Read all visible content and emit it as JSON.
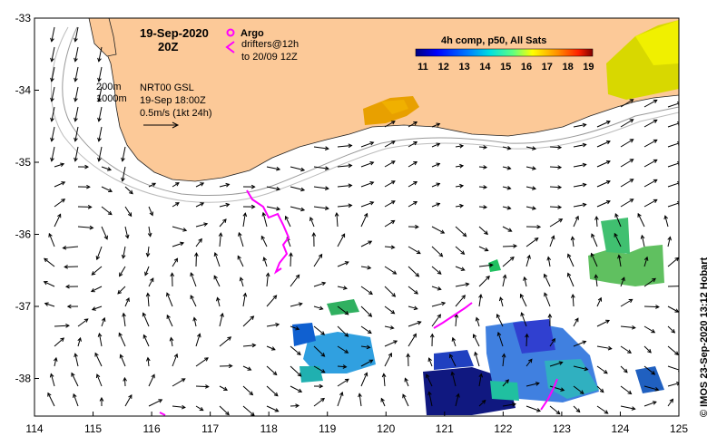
{
  "map": {
    "date_line1": "19-Sep-2020",
    "date_line2": "20Z",
    "argo_label": "Argo",
    "drifters_line1": "drifters@12h",
    "drifters_line2": "to 20/09 12Z",
    "isobaths_line1": "200m",
    "isobaths_line2": "1000m",
    "nrt_line1": "NRT00 GSL",
    "nrt_line2": "19-Sep 18:00Z",
    "nrt_line3": "0.5m/s (1kt 24h)",
    "colorbar_title": "4h comp, p50, All Sats",
    "colorbar_ticks": [
      "11",
      "12",
      "13",
      "14",
      "15",
      "16",
      "17",
      "18",
      "19"
    ],
    "colorbar_colors": [
      "#00007f",
      "#0000ff",
      "#0080ff",
      "#00ffff",
      "#80ff80",
      "#ffff00",
      "#ff8000",
      "#ff0000",
      "#7f0000"
    ],
    "credit": "© IMOS 23-Sep-2020 13:12 Hobart",
    "x_ticks": [
      "114",
      "115",
      "116",
      "117",
      "118",
      "119",
      "120",
      "121",
      "122",
      "123",
      "124",
      "125"
    ],
    "y_ticks": [
      "-33",
      "-34",
      "-35",
      "-36",
      "-37",
      "-38"
    ],
    "colors": {
      "land": "#fcc998",
      "argo": "#ff00ff",
      "drifter": "#ff00ff",
      "isobath": "#999999"
    }
  }
}
